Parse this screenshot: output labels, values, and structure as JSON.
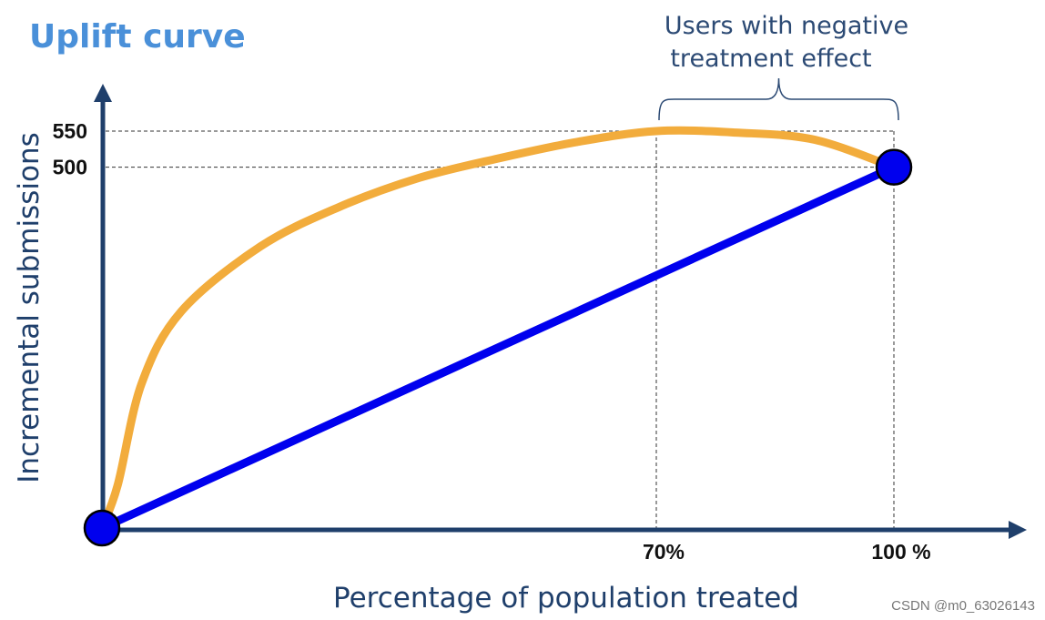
{
  "chart_data": {
    "type": "line",
    "title": "Uplift curve",
    "xlabel": "Percentage of population treated",
    "ylabel": "Incremental submissions",
    "x_ticks": [
      {
        "value": 70,
        "label": "70%"
      },
      {
        "value": 100,
        "label": "100 %"
      }
    ],
    "y_ticks": [
      {
        "value": 500,
        "label": "500"
      },
      {
        "value": 550,
        "label": "550"
      }
    ],
    "xlim": [
      0,
      100
    ],
    "ylim": [
      0,
      550
    ],
    "grid": false,
    "series": [
      {
        "color": "#f2ac3c",
        "x": [
          0,
          2,
          5,
          10,
          20,
          30,
          40,
          50,
          60,
          70,
          80,
          90,
          100
        ],
        "y": [
          0,
          60,
          200,
          300,
          390,
          445,
          485,
          512,
          535,
          550,
          548,
          538,
          500
        ]
      },
      {
        "color": "#0000ee",
        "x": [
          0,
          100
        ],
        "y": [
          0,
          500
        ]
      }
    ],
    "annotations": [
      {
        "text_lines": [
          "Users with negative",
          "treatment effect"
        ],
        "x_range": [
          70,
          100
        ]
      }
    ]
  },
  "watermark": "CSDN @m0_63026143",
  "colors": {
    "axis": "#1f3f6b",
    "uplift": "#f2ac3c",
    "random": "#0000ee",
    "title": "#4a90d9"
  }
}
